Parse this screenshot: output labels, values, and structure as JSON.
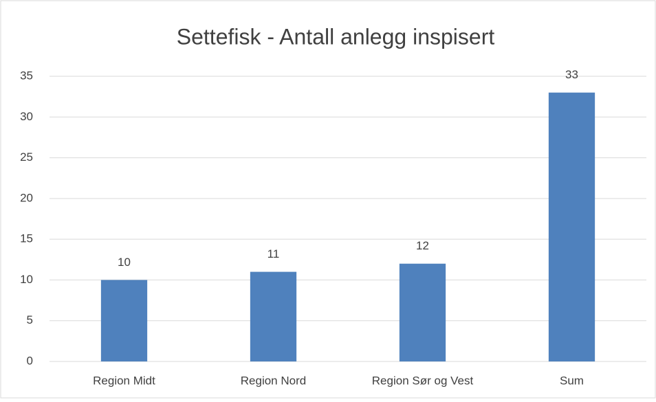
{
  "chart_data": {
    "type": "bar",
    "title": "Settefisk - Antall anlegg inspisert",
    "categories": [
      "Region Midt",
      "Region Nord",
      "Region Sør og Vest",
      "Sum"
    ],
    "values": [
      10,
      11,
      12,
      33
    ],
    "color": "#4f81bd",
    "ylim": [
      0,
      35
    ],
    "yticks": [
      0,
      5,
      10,
      15,
      20,
      25,
      30,
      35
    ],
    "grid": true
  }
}
